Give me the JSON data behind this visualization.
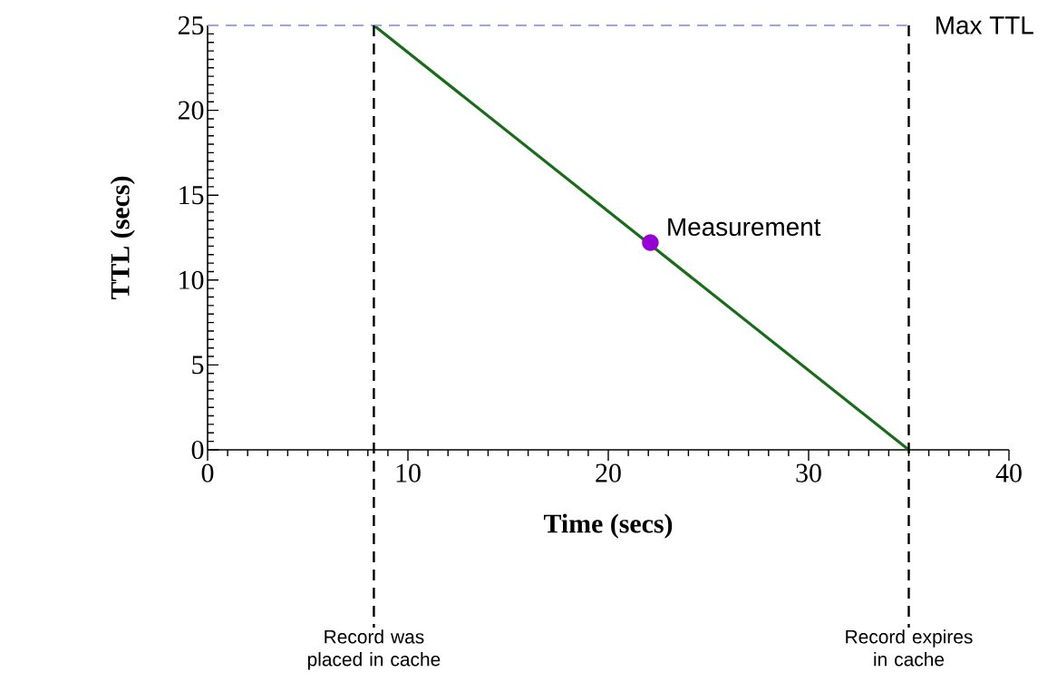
{
  "chart_data": {
    "type": "line",
    "xlabel": "Time (secs)",
    "ylabel": "TTL (secs)",
    "xlim": [
      0,
      40
    ],
    "ylim": [
      0,
      25
    ],
    "xticks": [
      0,
      10,
      20,
      30,
      40
    ],
    "yticks": [
      0,
      5,
      10,
      15,
      20,
      25
    ],
    "series": [
      {
        "x": [
          8.3,
          35
        ],
        "values": [
          25,
          0
        ],
        "color": "#1a6b1a",
        "marker": "none"
      },
      {
        "type": "scatter",
        "x": [
          22.1
        ],
        "values": [
          12.2
        ],
        "color": "#9400d3",
        "marker": "circle"
      }
    ],
    "ref_lines": [
      {
        "axis": "y",
        "value": 25,
        "label": "Max TTL",
        "color": "#a0a0f0",
        "line_style": "dashed"
      },
      {
        "axis": "x",
        "value": 8.3,
        "label": "Record was placed in cache",
        "color": "#000000",
        "line_style": "dashed"
      },
      {
        "axis": "x",
        "value": 35,
        "label": "Record expires in cache",
        "color": "#000000",
        "line_style": "dashed"
      }
    ],
    "annotations": [
      {
        "text": "Measurement",
        "x": 22.1,
        "y": 12.2
      }
    ]
  }
}
